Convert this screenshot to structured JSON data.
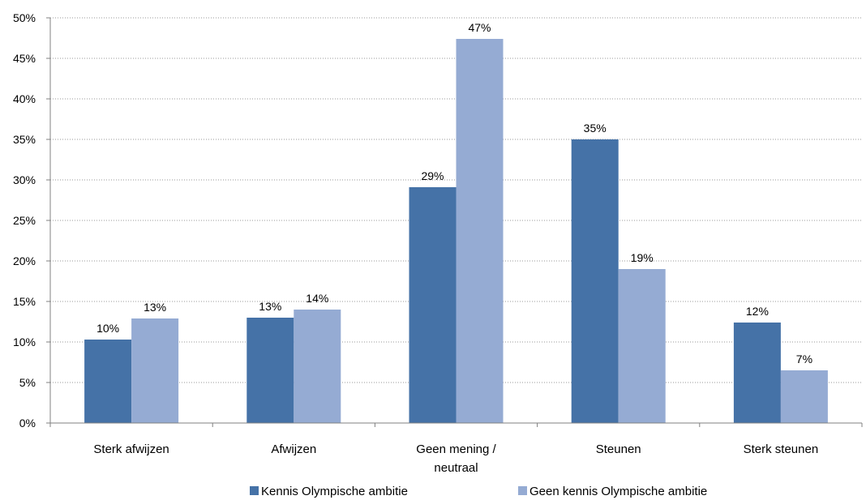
{
  "chart_data": {
    "type": "bar",
    "categories": [
      [
        "Sterk afwijzen"
      ],
      [
        "Afwijzen"
      ],
      [
        "Geen mening /",
        "neutraal"
      ],
      [
        "Steunen"
      ],
      [
        "Sterk steunen"
      ]
    ],
    "series": [
      {
        "name": "Kennis Olympische ambitie",
        "color": "#4572A7",
        "values": [
          10.3,
          13.0,
          29.1,
          35.0,
          12.4
        ],
        "labels": [
          "10%",
          "13%",
          "29%",
          "35%",
          "12%"
        ]
      },
      {
        "name": "Geen kennis Olympische ambitie",
        "color": "#95ABD3",
        "values": [
          12.9,
          14.0,
          47.4,
          19.0,
          6.5
        ],
        "labels": [
          "13%",
          "14%",
          "47%",
          "19%",
          "7%"
        ]
      }
    ],
    "ylim": [
      0,
      50
    ],
    "yticks": [
      0,
      5,
      10,
      15,
      20,
      25,
      30,
      35,
      40,
      45,
      50
    ],
    "ytick_labels": [
      "0%",
      "5%",
      "10%",
      "15%",
      "20%",
      "25%",
      "30%",
      "35%",
      "40%",
      "45%",
      "50%"
    ],
    "grid": true,
    "legend_position": "bottom",
    "title": "",
    "xlabel": "",
    "ylabel": ""
  }
}
